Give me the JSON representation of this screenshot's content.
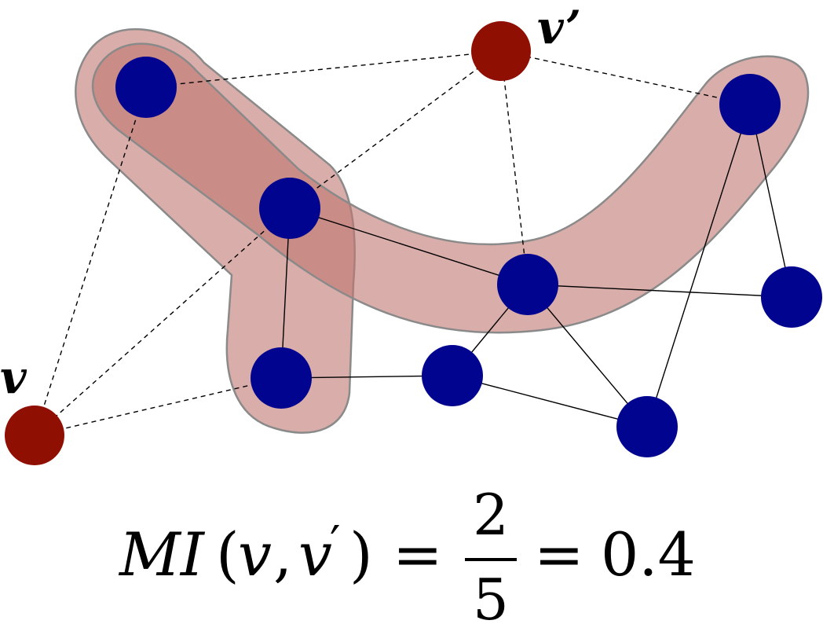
{
  "labels": {
    "node_v": "v",
    "node_v_prime": "v’"
  },
  "formula": {
    "lhs_function": "MI",
    "lhs_open": "(",
    "lhs_arg1": "v",
    "lhs_comma": ",",
    "lhs_arg2": "v",
    "lhs_prime": "′",
    "lhs_close": ")",
    "eq1": "=",
    "numerator": "2",
    "denominator": "5",
    "eq2": "=",
    "result": "0.4"
  },
  "colors": {
    "blue_node": "#01048f",
    "red_node": "#8f0f02",
    "hull_fill": "#c0766f",
    "hull_stroke": "#8a8a8a",
    "edge": "#000000"
  }
}
